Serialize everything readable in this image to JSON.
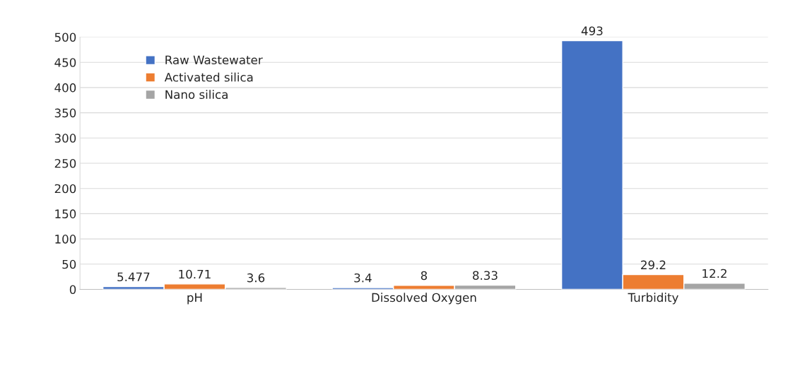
{
  "chart_data": {
    "type": "bar",
    "categories": [
      "pH",
      "Dissolved Oxygen",
      "Turbidity"
    ],
    "series": [
      {
        "name": "Raw Wastewater",
        "color": "#4472c4",
        "values": [
          5.477,
          3.4,
          493
        ]
      },
      {
        "name": "Activated silica",
        "color": "#ed7d31",
        "values": [
          10.71,
          8,
          29.2
        ]
      },
      {
        "name": "Nano silica",
        "color": "#a5a5a5",
        "values": [
          3.6,
          8.33,
          12.2
        ]
      }
    ],
    "ylim": [
      0,
      500
    ],
    "yticks": [
      0,
      50,
      100,
      150,
      200,
      250,
      300,
      350,
      400,
      450,
      500
    ],
    "grid": "y",
    "legend": "top left",
    "data_labels": true
  }
}
